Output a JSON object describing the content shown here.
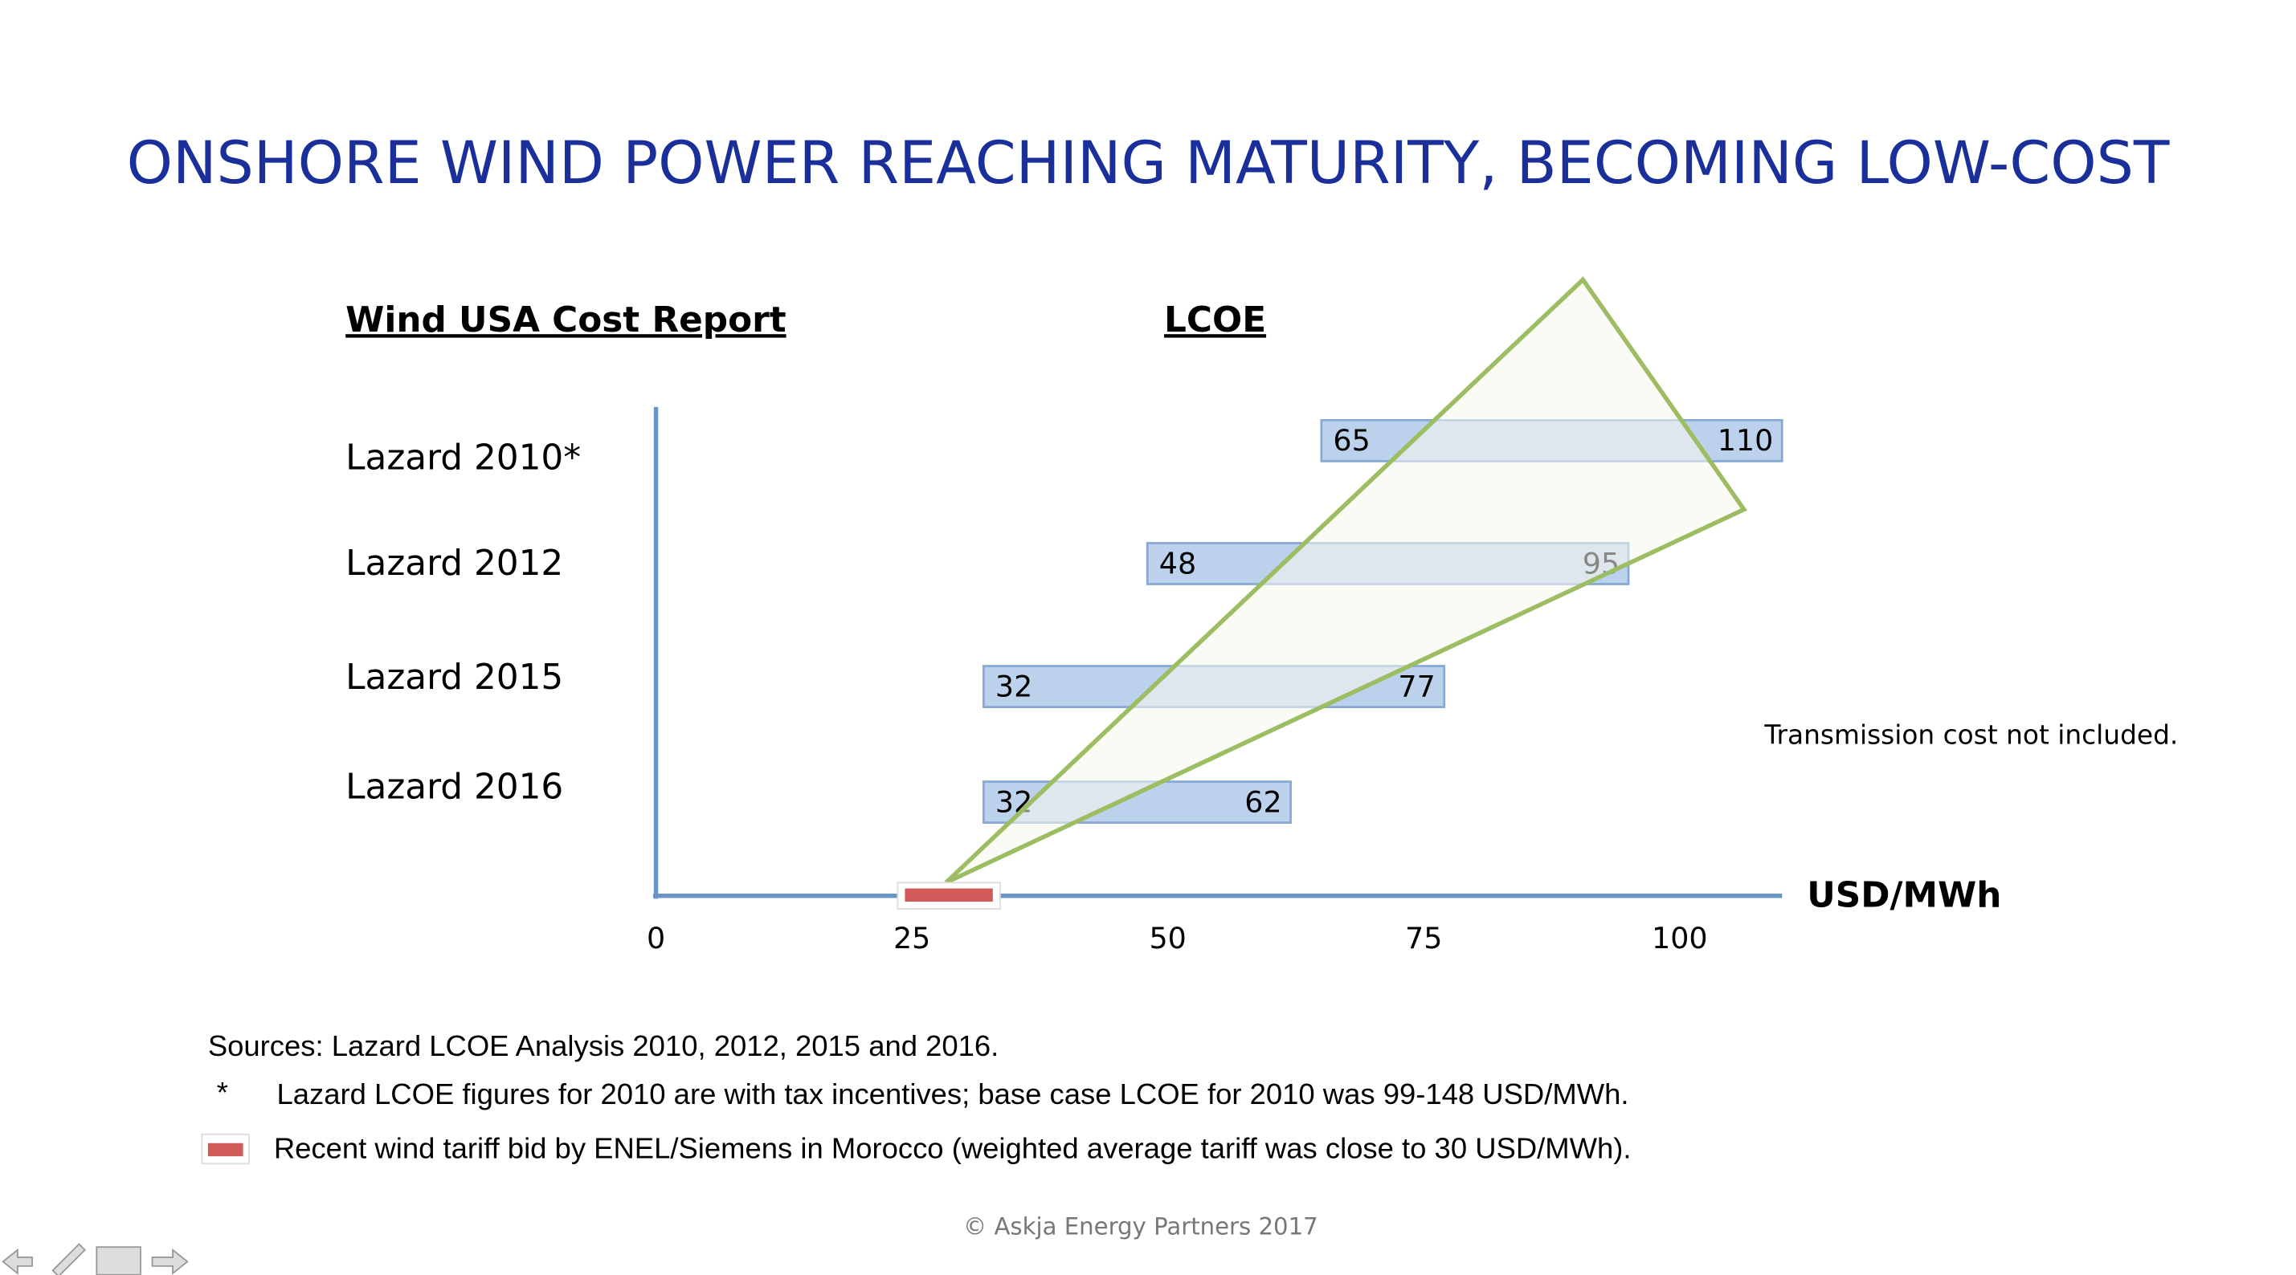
{
  "header": {
    "title": "ONSHORE WIND POWER REACHING MATURITY, BECOMING LOW-COST"
  },
  "chart_data": {
    "type": "range-bar",
    "subtitle_left": "Wind USA Cost Report",
    "subtitle_right": "LCOE",
    "categories": [
      "Lazard 2010*",
      "Lazard 2012",
      "Lazard 2015",
      "Lazard 2016"
    ],
    "lows": [
      65,
      48,
      32,
      32
    ],
    "highs": [
      110,
      95,
      77,
      62
    ],
    "color": "#bcd2ec",
    "xlim": [
      0,
      110
    ],
    "xticks": [
      0,
      25,
      50,
      75,
      100
    ],
    "x_label": "USD/MWh",
    "annotation": "Transmission cost not included."
  },
  "footnotes": {
    "sources": "Sources: Lazard LCOE Analysis 2010, 2012, 2015 and 2016.",
    "star": "*",
    "star_note": "Lazard LCOE figures for 2010 are with tax incentives; base case LCOE for 2010 was 99-148 USD/MWh.",
    "marker_note": "Recent wind tariff bid by ENEL/Siemens in Morocco (weighted average tariff was close to 30 USD/MWh)."
  },
  "copyright": "© Askja Energy Partners 2017"
}
